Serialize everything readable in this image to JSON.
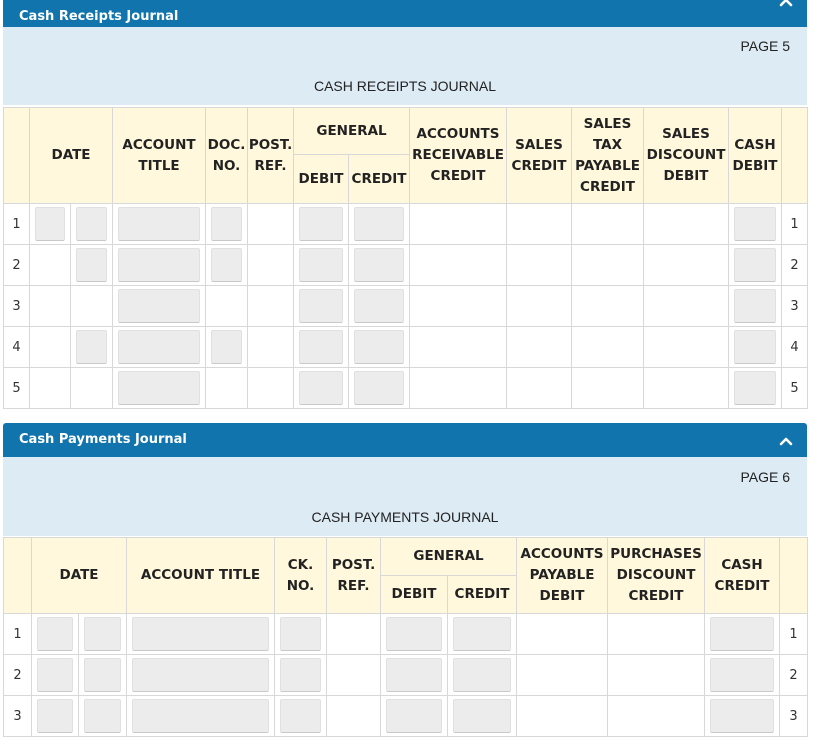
{
  "receipts": {
    "panel_title": "Cash Receipts Journal",
    "page_label": "PAGE 5",
    "journal_title": "CASH RECEIPTS JOURNAL",
    "headers": {
      "date": "DATE",
      "account_title": [
        "ACCOUNT",
        "TITLE"
      ],
      "doc_no": [
        "DOC.",
        "NO."
      ],
      "post_ref": [
        "POST.",
        "REF."
      ],
      "general": "GENERAL",
      "debit": "DEBIT",
      "credit": "CREDIT",
      "accounts_receivable_credit": [
        "ACCOUNTS",
        "RECEIVABLE",
        "CREDIT"
      ],
      "sales_credit": [
        "SALES",
        "CREDIT"
      ],
      "sales_tax_payable_credit": [
        "SALES",
        "TAX",
        "PAYABLE",
        "CREDIT"
      ],
      "sales_discount_debit": [
        "SALES",
        "DISCOUNT",
        "DEBIT"
      ],
      "cash_debit": [
        "CASH",
        "DEBIT"
      ]
    },
    "rows": [
      "1",
      "2",
      "3",
      "4",
      "5"
    ]
  },
  "payments": {
    "panel_title": "Cash Payments Journal",
    "page_label": "PAGE 6",
    "journal_title": "CASH PAYMENTS JOURNAL",
    "headers": {
      "date": "DATE",
      "account_title": "ACCOUNT TITLE",
      "ck_no": [
        "CK.",
        "NO."
      ],
      "post_ref": [
        "POST.",
        "REF."
      ],
      "general": "GENERAL",
      "debit": "DEBIT",
      "credit": "CREDIT",
      "accounts_payable_debit": [
        "ACCOUNTS",
        "PAYABLE",
        "DEBIT"
      ],
      "purchases_discount_credit": [
        "PURCHASES",
        "DISCOUNT",
        "CREDIT"
      ],
      "cash_credit": [
        "CASH",
        "CREDIT"
      ]
    },
    "rows": [
      "1",
      "2",
      "3"
    ]
  }
}
